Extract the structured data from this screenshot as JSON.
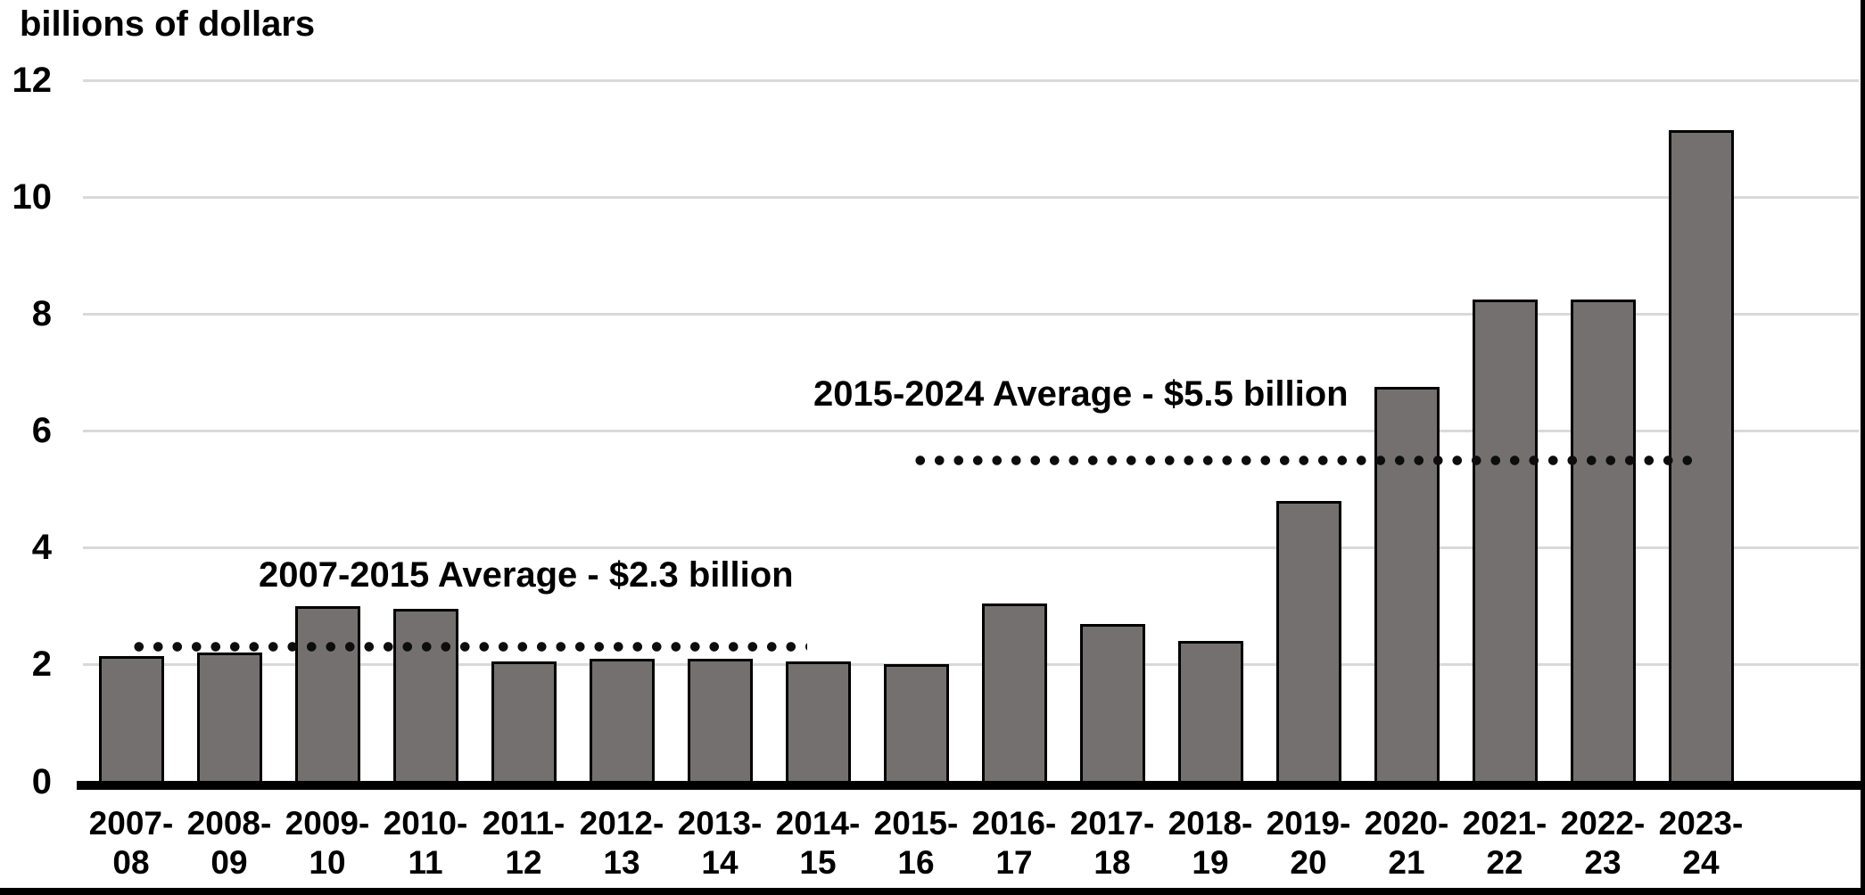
{
  "chart_data": {
    "type": "bar",
    "title": "billions of dollars",
    "xlabel": "",
    "ylabel": "billions of dollars",
    "ylim": [
      0,
      12
    ],
    "yticks": [
      0,
      2,
      4,
      6,
      8,
      10,
      12
    ],
    "grid": "horizontal-light-gray",
    "legend": "none",
    "bar_color": "#757070",
    "bar_border_color": "#000000",
    "gridline_color": "#d9d9d9",
    "axis_color": "#000000",
    "categories": [
      "2007-08",
      "2008-09",
      "2009-10",
      "2010-11",
      "2011-12",
      "2012-13",
      "2013-14",
      "2014-15",
      "2015-16",
      "2016-17",
      "2017-18",
      "2018-19",
      "2019-20",
      "2020-21",
      "2021-22",
      "2022-23",
      "2023-24"
    ],
    "categories_line1": [
      "2007-",
      "2008-",
      "2009-",
      "2010-",
      "2011-",
      "2012-",
      "2013-",
      "2014-",
      "2015-",
      "2016-",
      "2017-",
      "2018-",
      "2019-",
      "2020-",
      "2021-",
      "2022-",
      "2023-"
    ],
    "categories_line2": [
      "08",
      "09",
      "10",
      "11",
      "12",
      "13",
      "14",
      "15",
      "16",
      "17",
      "18",
      "19",
      "20",
      "21",
      "22",
      "23",
      "24"
    ],
    "values": [
      2.15,
      2.2,
      3.0,
      2.95,
      2.05,
      2.1,
      2.1,
      2.05,
      2.0,
      3.05,
      2.7,
      2.4,
      4.8,
      6.75,
      8.25,
      8.25,
      11.15
    ],
    "annotations": [
      {
        "label": "2007-2015 Average - $2.3 billion",
        "value": 2.3,
        "span_categories": [
          "2007-08",
          "2014-15"
        ]
      },
      {
        "label": "2015-2024 Average - $5.5 billion",
        "value": 5.5,
        "span_categories": [
          "2015-16",
          "2023-24"
        ]
      }
    ]
  }
}
